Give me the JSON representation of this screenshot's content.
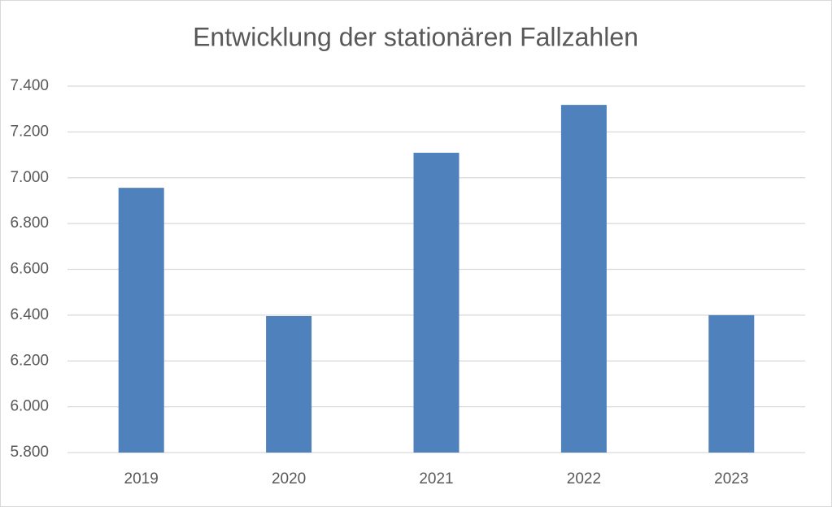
{
  "chart_data": {
    "type": "bar",
    "title": "Entwicklung der stationären Fallzahlen",
    "categories": [
      "2019",
      "2020",
      "2021",
      "2022",
      "2023"
    ],
    "values": [
      6956,
      6396,
      7109,
      7318,
      6400
    ],
    "color": "#4f81bd",
    "ylim": [
      5800,
      7400
    ],
    "yticks": [
      {
        "value": 5800,
        "label": "5.800"
      },
      {
        "value": 6000,
        "label": "6.000"
      },
      {
        "value": 6200,
        "label": "6.200"
      },
      {
        "value": 6400,
        "label": "6.400"
      },
      {
        "value": 6600,
        "label": "6.600"
      },
      {
        "value": 6800,
        "label": "6.800"
      },
      {
        "value": 7000,
        "label": "7.000"
      },
      {
        "value": 7200,
        "label": "7.200"
      },
      {
        "value": 7400,
        "label": "7.400"
      }
    ],
    "grid": true
  }
}
